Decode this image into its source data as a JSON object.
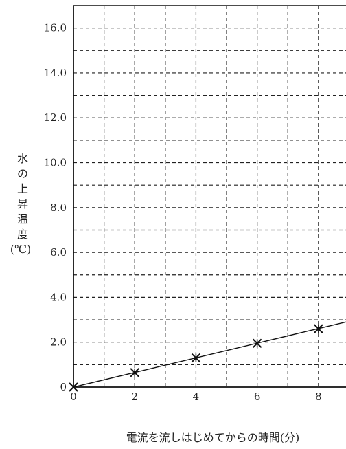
{
  "chart_data": {
    "type": "scatter",
    "xlabel": "電流を流しはじめてからの時間(分)",
    "ylabel_lines": [
      "水",
      "の",
      "上",
      "昇",
      "温",
      "度",
      "(℃)"
    ],
    "x_ticks": [
      "0",
      "2",
      "4",
      "6",
      "8"
    ],
    "y_ticks": [
      "0",
      "2.0",
      "4.0",
      "6.0",
      "8.0",
      "10.0",
      "12.0",
      "14.0",
      "16.0"
    ],
    "xlim": [
      0,
      8.9
    ],
    "ylim": [
      0,
      17
    ],
    "grid": true,
    "series": [
      {
        "marker": "x",
        "x": [
          0,
          2,
          4,
          6,
          8
        ],
        "y": [
          0,
          0.65,
          1.3,
          1.95,
          2.6
        ]
      }
    ],
    "trendline": {
      "x": [
        0,
        8.9
      ],
      "y": [
        0,
        2.9
      ]
    }
  }
}
